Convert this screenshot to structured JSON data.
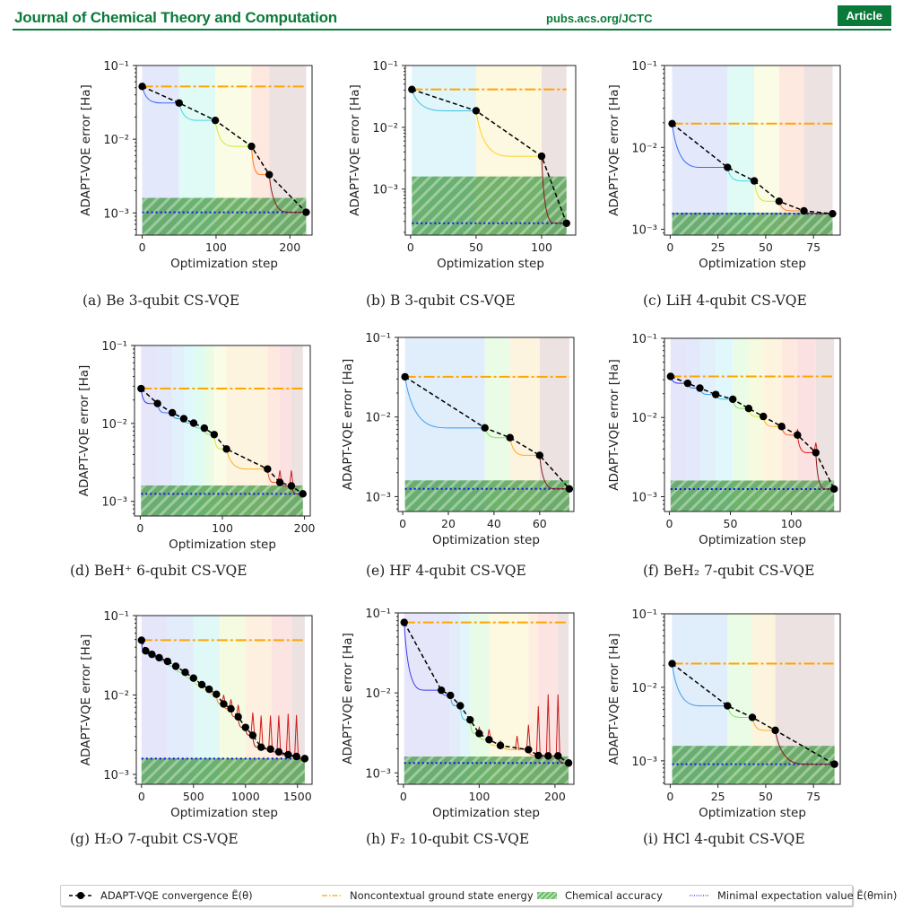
{
  "header": {
    "journal": "Journal of Chemical Theory and Computation",
    "site": "pubs.acs.org/JCTC",
    "badge": "Article"
  },
  "legend": {
    "items": [
      {
        "label": "ADAPT-VQE convergence Ẽ(θ)",
        "kind": "markers"
      },
      {
        "label": "Noncontextual ground state energy",
        "kind": "dashdot"
      },
      {
        "label": "Chemical accuracy",
        "kind": "hatch"
      },
      {
        "label": "Minimal expectation value Ẽ(θmin)",
        "kind": "dotted"
      }
    ]
  },
  "colors": {
    "convergence": "#000000",
    "noncontextual": "#ffa500",
    "chemical_accuracy": "#4caf50",
    "minimal": "#0000ff"
  },
  "chart_data": [
    {
      "type": "line",
      "id": "a",
      "caption": "(a) Be 3-qubit CS-VQE",
      "xlabel": "Optimization step",
      "ylabel": "ADAPT-VQE error [Ha]",
      "yscale": "log",
      "ylim": [
        0.0005,
        0.1
      ],
      "xlim": [
        -8,
        230
      ],
      "xticks": [
        0,
        100,
        200
      ],
      "yticks": [
        0.001,
        0.01,
        0.1
      ],
      "ytick_labels": [
        "10⁻³",
        "10⁻²",
        "10⁻¹"
      ],
      "noncontextual": 0.052,
      "minimal": 0.00102,
      "chem_acc": 0.0016,
      "points": [
        [
          0,
          0.052
        ],
        [
          50,
          0.031
        ],
        [
          99,
          0.018
        ],
        [
          148,
          0.008
        ],
        [
          172,
          0.0033
        ],
        [
          222,
          0.00102
        ]
      ],
      "bands": [
        [
          0,
          50,
          "#e3e8fb"
        ],
        [
          50,
          99,
          "#e0fbf6"
        ],
        [
          99,
          148,
          "#fbfce6"
        ],
        [
          148,
          172,
          "#fde9e0"
        ],
        [
          172,
          222,
          "#ede2e2"
        ]
      ],
      "seg_colors": [
        "#3b6cf0",
        "#3fd9e6",
        "#c9ea3a",
        "#ff7a1a",
        "#8b1a1a"
      ],
      "spikes": []
    },
    {
      "type": "line",
      "id": "b",
      "caption": "(b) B 3-qubit CS-VQE",
      "xlabel": "Optimization step",
      "ylabel": "ADAPT-VQE error [Ha]",
      "yscale": "log",
      "ylim": [
        0.00018,
        0.1
      ],
      "xlim": [
        -4,
        126
      ],
      "xticks": [
        0,
        50,
        100
      ],
      "yticks": [
        0.001,
        0.01,
        0.1
      ],
      "ytick_labels": [
        "10⁻³",
        "10⁻²",
        "10⁻¹"
      ],
      "noncontextual": 0.041,
      "minimal": 0.00028,
      "chem_acc": 0.0016,
      "points": [
        [
          1,
          0.041
        ],
        [
          50,
          0.0185
        ],
        [
          100,
          0.0034
        ],
        [
          119,
          0.00028
        ]
      ],
      "bands": [
        [
          1,
          50,
          "#e0f6fb"
        ],
        [
          50,
          100,
          "#fdf8e0"
        ],
        [
          100,
          119,
          "#ede2e2"
        ]
      ],
      "seg_colors": [
        "#3fc4e6",
        "#ffd21a",
        "#8b1a1a"
      ],
      "spikes": []
    },
    {
      "type": "line",
      "id": "c",
      "caption": "(c) LiH 4-qubit CS-VQE",
      "xlabel": "Optimization step",
      "ylabel": "ADAPT-VQE error [Ha]",
      "yscale": "log",
      "ylim": [
        0.00085,
        0.1
      ],
      "xlim": [
        -3,
        89
      ],
      "xticks": [
        0,
        25,
        50,
        75
      ],
      "yticks": [
        0.001,
        0.01,
        0.1
      ],
      "ytick_labels": [
        "10⁻³",
        "10⁻²",
        "10⁻¹"
      ],
      "noncontextual": 0.0195,
      "minimal": 0.00155,
      "chem_acc": 0.0016,
      "points": [
        [
          1,
          0.0195
        ],
        [
          30,
          0.0057
        ],
        [
          44,
          0.0039
        ],
        [
          57,
          0.0022
        ],
        [
          70,
          0.00168
        ],
        [
          85,
          0.00155
        ]
      ],
      "bands": [
        [
          1,
          30,
          "#e3e8fb"
        ],
        [
          30,
          44,
          "#e0fbf6"
        ],
        [
          44,
          57,
          "#fbfce6"
        ],
        [
          57,
          70,
          "#fde9e0"
        ],
        [
          70,
          85,
          "#ede2e2"
        ]
      ],
      "seg_colors": [
        "#3b6cf0",
        "#3fd9e6",
        "#c9ea3a",
        "#ff7a1a",
        "#8b1a1a"
      ],
      "spikes": []
    },
    {
      "type": "line",
      "id": "d",
      "caption": "(d) BeH⁺ 6-qubit CS-VQE",
      "xlabel": "Optimization step",
      "ylabel": "ADAPT-VQE error [Ha]",
      "yscale": "log",
      "ylim": [
        0.00065,
        0.1
      ],
      "xlim": [
        -7,
        207
      ],
      "xticks": [
        0,
        100,
        200
      ],
      "yticks": [
        0.001,
        0.01,
        0.1
      ],
      "ytick_labels": [
        "10⁻³",
        "10⁻²",
        "10⁻¹"
      ],
      "noncontextual": 0.028,
      "minimal": 0.00125,
      "chem_acc": 0.0016,
      "points": [
        [
          1,
          0.028
        ],
        [
          21,
          0.018
        ],
        [
          39,
          0.0137
        ],
        [
          53,
          0.0115
        ],
        [
          65,
          0.0101
        ],
        [
          78,
          0.0087
        ],
        [
          90,
          0.0072
        ],
        [
          105,
          0.0047
        ],
        [
          155,
          0.0026
        ],
        [
          170,
          0.00175
        ],
        [
          184,
          0.00158
        ],
        [
          198,
          0.00125
        ]
      ],
      "bands": [
        [
          1,
          21,
          "#e6e6fa"
        ],
        [
          21,
          39,
          "#e3e8fb"
        ],
        [
          39,
          53,
          "#e2f0fb"
        ],
        [
          53,
          65,
          "#e0f8fb"
        ],
        [
          65,
          78,
          "#e0fbf2"
        ],
        [
          78,
          90,
          "#eafbe6"
        ],
        [
          90,
          105,
          "#fbfce6"
        ],
        [
          105,
          155,
          "#fdf4e0"
        ],
        [
          155,
          170,
          "#fde9e0"
        ],
        [
          170,
          184,
          "#fbe1e1"
        ],
        [
          184,
          198,
          "#ede2e2"
        ]
      ],
      "seg_colors": [
        "#3b3bf0",
        "#3b6cf0",
        "#3b9cf0",
        "#3fc4e6",
        "#3fe6c4",
        "#7fe66a",
        "#c9ea3a",
        "#ffb01a",
        "#ff5a1a",
        "#e01a1a",
        "#8b1a1a"
      ],
      "spikes": [
        [
          170,
          0.0025
        ],
        [
          184,
          0.0025
        ]
      ]
    },
    {
      "type": "line",
      "id": "e",
      "caption": "(e) HF 4-qubit CS-VQE",
      "xlabel": "Optimization step",
      "ylabel": "ADAPT-VQE error [Ha]",
      "yscale": "log",
      "ylim": [
        0.00065,
        0.1
      ],
      "xlim": [
        -2,
        75
      ],
      "xticks": [
        0,
        20,
        40,
        60
      ],
      "yticks": [
        0.001,
        0.01,
        0.1
      ],
      "ytick_labels": [
        "10⁻³",
        "10⁻²",
        "10⁻¹"
      ],
      "noncontextual": 0.032,
      "minimal": 0.00125,
      "chem_acc": 0.0016,
      "points": [
        [
          1,
          0.032
        ],
        [
          36,
          0.0073
        ],
        [
          47,
          0.0055
        ],
        [
          60,
          0.0033
        ],
        [
          73,
          0.00125
        ]
      ],
      "bands": [
        [
          1,
          36,
          "#e0eefb"
        ],
        [
          36,
          47,
          "#eafbe6"
        ],
        [
          47,
          60,
          "#fdf4e0"
        ],
        [
          60,
          73,
          "#ede2e2"
        ]
      ],
      "seg_colors": [
        "#3b9cf0",
        "#7fe66a",
        "#ffb01a",
        "#8b1a1a"
      ],
      "spikes": []
    },
    {
      "type": "line",
      "id": "f",
      "caption": "(f) BeH₂ 7-qubit CS-VQE",
      "xlabel": "Optimization step",
      "ylabel": "ADAPT-VQE error [Ha]",
      "yscale": "log",
      "ylim": [
        0.00065,
        0.1
      ],
      "xlim": [
        -4,
        140
      ],
      "xticks": [
        0,
        50,
        100
      ],
      "yticks": [
        0.001,
        0.01,
        0.1
      ],
      "ytick_labels": [
        "10⁻³",
        "10⁻²",
        "10⁻¹"
      ],
      "noncontextual": 0.033,
      "minimal": 0.00125,
      "chem_acc": 0.0016,
      "points": [
        [
          1,
          0.033
        ],
        [
          15,
          0.027
        ],
        [
          25,
          0.0235
        ],
        [
          38,
          0.0195
        ],
        [
          52,
          0.017
        ],
        [
          65,
          0.013
        ],
        [
          77,
          0.0103
        ],
        [
          92,
          0.0077
        ],
        [
          105,
          0.006
        ],
        [
          120,
          0.0036
        ],
        [
          135,
          0.00125
        ]
      ],
      "bands": [
        [
          1,
          15,
          "#e6e6fa"
        ],
        [
          15,
          25,
          "#e3e8fb"
        ],
        [
          25,
          38,
          "#e2f0fb"
        ],
        [
          38,
          52,
          "#e0f8fb"
        ],
        [
          52,
          65,
          "#eafbe6"
        ],
        [
          65,
          77,
          "#f6fbe0"
        ],
        [
          77,
          92,
          "#fdf4e0"
        ],
        [
          92,
          105,
          "#fde9e0"
        ],
        [
          105,
          120,
          "#fbe1e1"
        ],
        [
          120,
          135,
          "#ede2e2"
        ]
      ],
      "seg_colors": [
        "#3b3bf0",
        "#3b6cf0",
        "#3b9cf0",
        "#3fc4e6",
        "#7fe66a",
        "#c9ea3a",
        "#ffb01a",
        "#ff5a1a",
        "#e01a1a",
        "#8b1a1a"
      ],
      "spikes": [
        [
          105,
          0.007
        ],
        [
          120,
          0.0048
        ]
      ]
    },
    {
      "type": "line",
      "id": "g",
      "caption": "(g) H₂O 7-qubit CS-VQE",
      "xlabel": "Optimization step",
      "ylabel": "ADAPT-VQE error [Ha]",
      "yscale": "log",
      "ylim": [
        0.00075,
        0.1
      ],
      "xlim": [
        -50,
        1640
      ],
      "xticks": [
        0,
        500,
        1000,
        1500
      ],
      "yticks": [
        0.001,
        0.01,
        0.1
      ],
      "ytick_labels": [
        "10⁻³",
        "10⁻²",
        "10⁻¹"
      ],
      "noncontextual": 0.049,
      "minimal": 0.00158,
      "chem_acc": 0.0016,
      "points": [
        [
          0,
          0.049
        ],
        [
          40,
          0.036
        ],
        [
          100,
          0.0325
        ],
        [
          170,
          0.0295
        ],
        [
          250,
          0.0265
        ],
        [
          330,
          0.023
        ],
        [
          420,
          0.0193
        ],
        [
          500,
          0.0163
        ],
        [
          580,
          0.0135
        ],
        [
          650,
          0.0118
        ],
        [
          720,
          0.0102
        ],
        [
          790,
          0.0077
        ],
        [
          860,
          0.0067
        ],
        [
          930,
          0.0053
        ],
        [
          1000,
          0.0039
        ],
        [
          1070,
          0.0031
        ],
        [
          1150,
          0.0022
        ],
        [
          1240,
          0.00208
        ],
        [
          1320,
          0.00192
        ],
        [
          1410,
          0.00177
        ],
        [
          1490,
          0.00168
        ],
        [
          1570,
          0.00158
        ]
      ],
      "bands": [
        [
          0,
          250,
          "#e6e6fa"
        ],
        [
          250,
          500,
          "#e2ecfb"
        ],
        [
          500,
          750,
          "#e0f8f6"
        ],
        [
          750,
          1000,
          "#f4fbe0"
        ],
        [
          1000,
          1250,
          "#fdf0e0"
        ],
        [
          1250,
          1450,
          "#fbe4e2"
        ],
        [
          1450,
          1570,
          "#ede2e2"
        ]
      ],
      "seg_colors": [
        "#3b3bf0",
        "#3b6cf0",
        "#3b9cf0",
        "#3fc4e6",
        "#3fe6c4",
        "#7fe66a",
        "#a8ea3a",
        "#c9ea3a",
        "#ffd21a",
        "#ffb01a",
        "#ff8a1a",
        "#ff5a1a",
        "#e01a1a",
        "#c01a1a",
        "#a01a1a",
        "#8b1a1a",
        "#8b1a1a",
        "#8b1a1a",
        "#8b1a1a",
        "#8b1a1a",
        "#8b1a1a"
      ],
      "spikes": [
        [
          790,
          0.01
        ],
        [
          860,
          0.0088
        ],
        [
          930,
          0.0075
        ],
        [
          1070,
          0.006
        ],
        [
          1150,
          0.0055
        ],
        [
          1240,
          0.0055
        ],
        [
          1320,
          0.0055
        ],
        [
          1410,
          0.0058
        ],
        [
          1490,
          0.0056
        ]
      ]
    },
    {
      "type": "line",
      "id": "h",
      "caption": "(h) F₂ 10-qubit CS-VQE",
      "xlabel": "Optimization step",
      "ylabel": "ADAPT-VQE error [Ha]",
      "yscale": "log",
      "ylim": [
        0.00072,
        0.1
      ],
      "xlim": [
        -7,
        225
      ],
      "xticks": [
        0,
        100,
        200
      ],
      "yticks": [
        0.001,
        0.01,
        0.1
      ],
      "ytick_labels": [
        "10⁻³",
        "10⁻²",
        "10⁻¹"
      ],
      "noncontextual": 0.076,
      "minimal": 0.00133,
      "chem_acc": 0.0016,
      "points": [
        [
          1,
          0.076
        ],
        [
          50,
          0.0108
        ],
        [
          62,
          0.0093
        ],
        [
          75,
          0.0069
        ],
        [
          88,
          0.0046
        ],
        [
          100,
          0.0031
        ],
        [
          113,
          0.0026
        ],
        [
          128,
          0.0022
        ],
        [
          165,
          0.00195
        ],
        [
          178,
          0.00165
        ],
        [
          191,
          0.00163
        ],
        [
          204,
          0.00163
        ],
        [
          218,
          0.00133
        ]
      ],
      "bands": [
        [
          1,
          62,
          "#e6e6fa"
        ],
        [
          62,
          75,
          "#e2ecfb"
        ],
        [
          75,
          88,
          "#e0f6fb"
        ],
        [
          88,
          113,
          "#e8fbe6"
        ],
        [
          113,
          165,
          "#fdf8e0"
        ],
        [
          165,
          178,
          "#fdeee0"
        ],
        [
          178,
          204,
          "#fbe4e2"
        ],
        [
          204,
          218,
          "#ede2e2"
        ]
      ],
      "seg_colors": [
        "#3b3bf0",
        "#3b6cf0",
        "#3b9cf0",
        "#3fc4e6",
        "#7fe66a",
        "#a8ea3a",
        "#ffd21a",
        "#ffb01a",
        "#ff5a1a",
        "#e01a1a",
        "#c01a1a",
        "#8b1a1a"
      ],
      "spikes": [
        [
          100,
          0.0037
        ],
        [
          113,
          0.0035
        ],
        [
          128,
          0.0025
        ],
        [
          150,
          0.0029
        ],
        [
          165,
          0.004
        ],
        [
          178,
          0.0068
        ],
        [
          191,
          0.0096
        ],
        [
          204,
          0.0096
        ]
      ]
    },
    {
      "type": "line",
      "id": "i",
      "caption": "(i) HCl 4-qubit CS-VQE",
      "xlabel": "Optimization step",
      "ylabel": "ADAPT-VQE error [Ha]",
      "yscale": "log",
      "ylim": [
        0.00048,
        0.1
      ],
      "xlim": [
        -3,
        89
      ],
      "xticks": [
        0,
        25,
        50,
        75
      ],
      "yticks": [
        0.001,
        0.01,
        0.1
      ],
      "ytick_labels": [
        "10⁻³",
        "10⁻²",
        "10⁻¹"
      ],
      "noncontextual": 0.021,
      "minimal": 0.0009,
      "chem_acc": 0.0016,
      "points": [
        [
          1,
          0.021
        ],
        [
          30,
          0.0056
        ],
        [
          43,
          0.0039
        ],
        [
          55,
          0.0026
        ],
        [
          86,
          0.0009
        ]
      ],
      "bands": [
        [
          1,
          30,
          "#e0eefb"
        ],
        [
          30,
          43,
          "#eafbe6"
        ],
        [
          43,
          55,
          "#fdf4e0"
        ],
        [
          55,
          86,
          "#ede2e2"
        ]
      ],
      "seg_colors": [
        "#3b9cf0",
        "#7fe66a",
        "#ffb01a",
        "#8b1a1a"
      ],
      "spikes": []
    }
  ]
}
